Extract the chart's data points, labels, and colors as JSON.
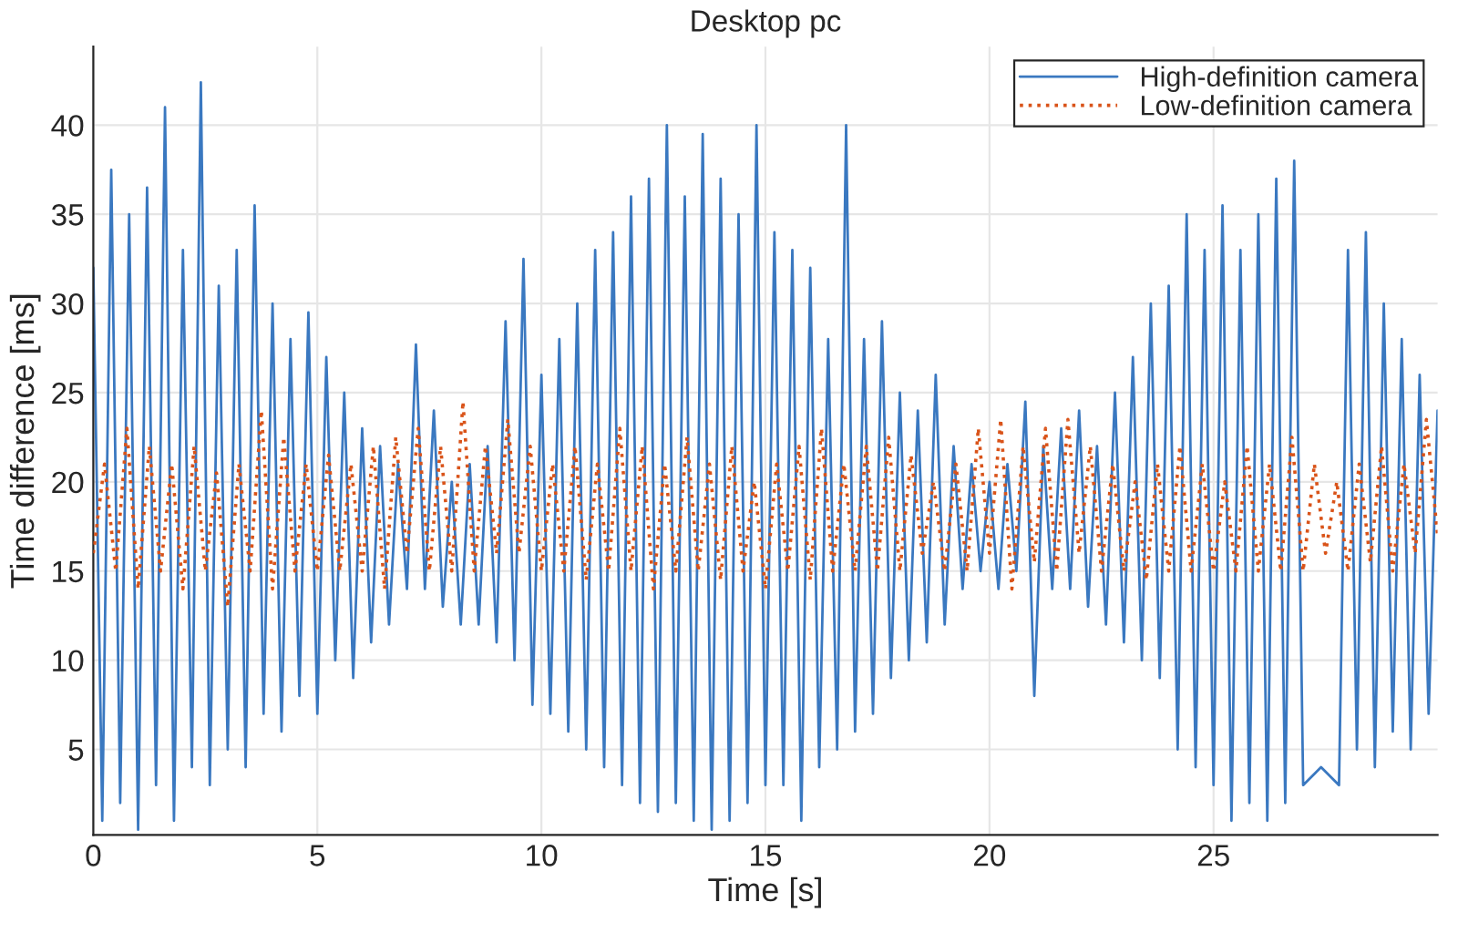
{
  "chart_data": {
    "type": "line",
    "title": "Desktop pc",
    "xlabel": "Time [s]",
    "ylabel": "Time difference [ms]",
    "xlim": [
      0,
      30
    ],
    "ylim": [
      0.2,
      44.4
    ],
    "xticks": [
      0,
      5,
      10,
      15,
      20,
      25
    ],
    "yticks": [
      5,
      10,
      15,
      20,
      25,
      30,
      35,
      40
    ],
    "grid": true,
    "legend": "top right",
    "series": [
      {
        "name": "High-definition camera",
        "color": "#3a78c0",
        "line_style": "solid",
        "x": [
          0,
          0.2,
          0.4,
          0.6,
          0.8,
          1.0,
          1.2,
          1.4,
          1.6,
          1.8,
          2.0,
          2.2,
          2.4,
          2.6,
          2.8,
          3.0,
          3.2,
          3.4,
          3.6,
          3.8,
          4.0,
          4.2,
          4.4,
          4.6,
          4.8,
          5.0,
          5.2,
          5.4,
          5.6,
          5.8,
          6.0,
          6.2,
          6.4,
          6.6,
          6.8,
          7.0,
          7.2,
          7.4,
          7.6,
          7.8,
          8.0,
          8.2,
          8.4,
          8.6,
          8.8,
          9.0,
          9.2,
          9.4,
          9.6,
          9.8,
          10.0,
          10.2,
          10.4,
          10.6,
          10.8,
          11.0,
          11.2,
          11.4,
          11.6,
          11.8,
          12.0,
          12.2,
          12.4,
          12.6,
          12.8,
          13.0,
          13.2,
          13.4,
          13.6,
          13.8,
          14.0,
          14.2,
          14.4,
          14.6,
          14.8,
          15.0,
          15.2,
          15.4,
          15.6,
          15.8,
          16.0,
          16.2,
          16.4,
          16.6,
          16.8,
          17.0,
          17.2,
          17.4,
          17.6,
          17.8,
          18.0,
          18.2,
          18.4,
          18.6,
          18.8,
          19.0,
          19.2,
          19.4,
          19.6,
          19.8,
          20.0,
          20.2,
          20.4,
          20.6,
          20.8,
          21.0,
          21.2,
          21.4,
          21.6,
          21.8,
          22.0,
          22.2,
          22.4,
          22.6,
          22.8,
          23.0,
          23.2,
          23.4,
          23.6,
          23.8,
          24.0,
          24.2,
          24.4,
          24.6,
          24.8,
          25.0,
          25.2,
          25.4,
          25.6,
          25.8,
          26.0,
          26.2,
          26.4,
          26.6,
          26.8,
          27.0,
          27.2,
          27.4,
          27.6,
          27.8,
          28.0,
          28.2,
          28.4,
          28.6,
          28.8,
          29.0,
          29.2,
          29.4,
          29.6,
          29.8,
          30.0
        ],
        "values": [
          32,
          1,
          37.5,
          2,
          35,
          0.5,
          36.5,
          3,
          41,
          1,
          33,
          4,
          42.4,
          3,
          31,
          5,
          33,
          4,
          35.5,
          7,
          30,
          6,
          28,
          8,
          29.5,
          7,
          27,
          10,
          25,
          9,
          23,
          11,
          22,
          12,
          21,
          14,
          27.7,
          14,
          24,
          13,
          20,
          12,
          21,
          12,
          22,
          11,
          29,
          10,
          32.5,
          7.5,
          26,
          7,
          28,
          6,
          30,
          5,
          33,
          4,
          34,
          3,
          36,
          2,
          37,
          1.5,
          40,
          2,
          36,
          1,
          39.5,
          0.5,
          37,
          1,
          35,
          2,
          40,
          3,
          34,
          3,
          33,
          1,
          32,
          4,
          28,
          5,
          40,
          6,
          28,
          7,
          29,
          9,
          25,
          10,
          24,
          11,
          26,
          12,
          22,
          14,
          21,
          15,
          20,
          14,
          21,
          15,
          24.5,
          8,
          22,
          14,
          23,
          14,
          24,
          13,
          22,
          12,
          25,
          11,
          27,
          10,
          30,
          9,
          31,
          5,
          35,
          4,
          33,
          3,
          35.5,
          1,
          33,
          2,
          35,
          1,
          37,
          2,
          38,
          3,
          null,
          4,
          null,
          3,
          33,
          5,
          34,
          4,
          30,
          6,
          28,
          5,
          26,
          7,
          24
        ]
      },
      {
        "name": "Low-definition camera",
        "color": "#d95319",
        "line_style": "dotted",
        "x": [
          0,
          0.25,
          0.5,
          0.75,
          1,
          1.25,
          1.5,
          1.75,
          2,
          2.25,
          2.5,
          2.75,
          3,
          3.25,
          3.5,
          3.75,
          4,
          4.25,
          4.5,
          4.75,
          5,
          5.25,
          5.5,
          5.75,
          6,
          6.25,
          6.5,
          6.75,
          7,
          7.25,
          7.5,
          7.75,
          8,
          8.25,
          8.5,
          8.75,
          9,
          9.25,
          9.5,
          9.75,
          10,
          10.25,
          10.5,
          10.75,
          11,
          11.25,
          11.5,
          11.75,
          12,
          12.25,
          12.5,
          12.75,
          13,
          13.25,
          13.5,
          13.75,
          14,
          14.25,
          14.5,
          14.75,
          15,
          15.25,
          15.5,
          15.75,
          16,
          16.25,
          16.5,
          16.75,
          17,
          17.25,
          17.5,
          17.75,
          18,
          18.25,
          18.5,
          18.75,
          19,
          19.25,
          19.5,
          19.75,
          20,
          20.25,
          20.5,
          20.75,
          21,
          21.25,
          21.5,
          21.75,
          22,
          22.25,
          22.5,
          22.75,
          23,
          23.25,
          23.5,
          23.75,
          24,
          24.25,
          24.5,
          24.75,
          25,
          25.25,
          25.5,
          25.75,
          26,
          26.25,
          26.5,
          26.75,
          27,
          27.25,
          27.5,
          27.75,
          28,
          28.25,
          28.5,
          28.75,
          29,
          29.25,
          29.5,
          29.75,
          30
        ],
        "values": [
          16,
          21,
          15,
          23,
          14,
          22,
          15,
          21,
          14,
          22,
          15,
          20.5,
          13,
          21,
          15,
          24,
          14,
          22.5,
          15,
          21,
          15,
          21.5,
          15,
          21,
          15,
          22,
          14,
          22.5,
          16,
          23,
          15,
          22,
          15,
          24.5,
          15,
          22,
          16,
          23.5,
          16,
          22,
          15,
          21,
          15,
          22,
          14.5,
          21,
          15,
          23,
          15,
          22,
          14,
          21,
          15,
          22.5,
          15,
          21,
          14.5,
          22,
          15,
          20,
          14,
          21,
          15,
          22,
          14.5,
          23,
          15,
          21,
          15,
          22,
          15,
          22.5,
          15,
          21.5,
          16,
          20,
          15,
          21,
          15,
          23,
          16,
          23.5,
          14,
          22,
          15.5,
          23,
          15,
          23.5,
          16,
          22,
          15,
          21,
          15,
          20,
          14.5,
          21,
          15,
          22,
          15,
          21,
          15,
          20,
          15,
          22,
          15,
          21,
          15,
          22.5,
          15,
          21,
          16,
          20,
          15,
          21,
          15.5,
          22,
          15,
          21,
          16,
          23.5,
          17
        ]
      }
    ]
  }
}
